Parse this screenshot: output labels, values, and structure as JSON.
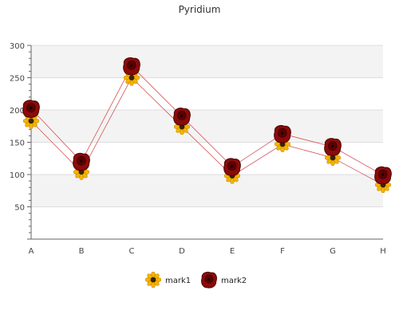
{
  "chart_data": {
    "type": "line",
    "title": "Pyridium",
    "categories": [
      "A",
      "B",
      "C",
      "D",
      "E",
      "F",
      "G",
      "H"
    ],
    "y_ticks": [
      "0",
      "50",
      "100",
      "150",
      "200",
      "250",
      "300"
    ],
    "ylim": [
      0,
      300
    ],
    "grid": "horizontal bands",
    "legend_position": "bottom",
    "series": [
      {
        "name": "mark1",
        "values": [
          183,
          104,
          250,
          174,
          98,
          147,
          126,
          84
        ],
        "color": "#d65050",
        "marker": "sunflower-icon"
      },
      {
        "name": "mark2",
        "values": [
          202,
          120,
          268,
          190,
          112,
          163,
          143,
          99
        ],
        "color": "#d65050",
        "marker": "rose-icon"
      }
    ]
  }
}
